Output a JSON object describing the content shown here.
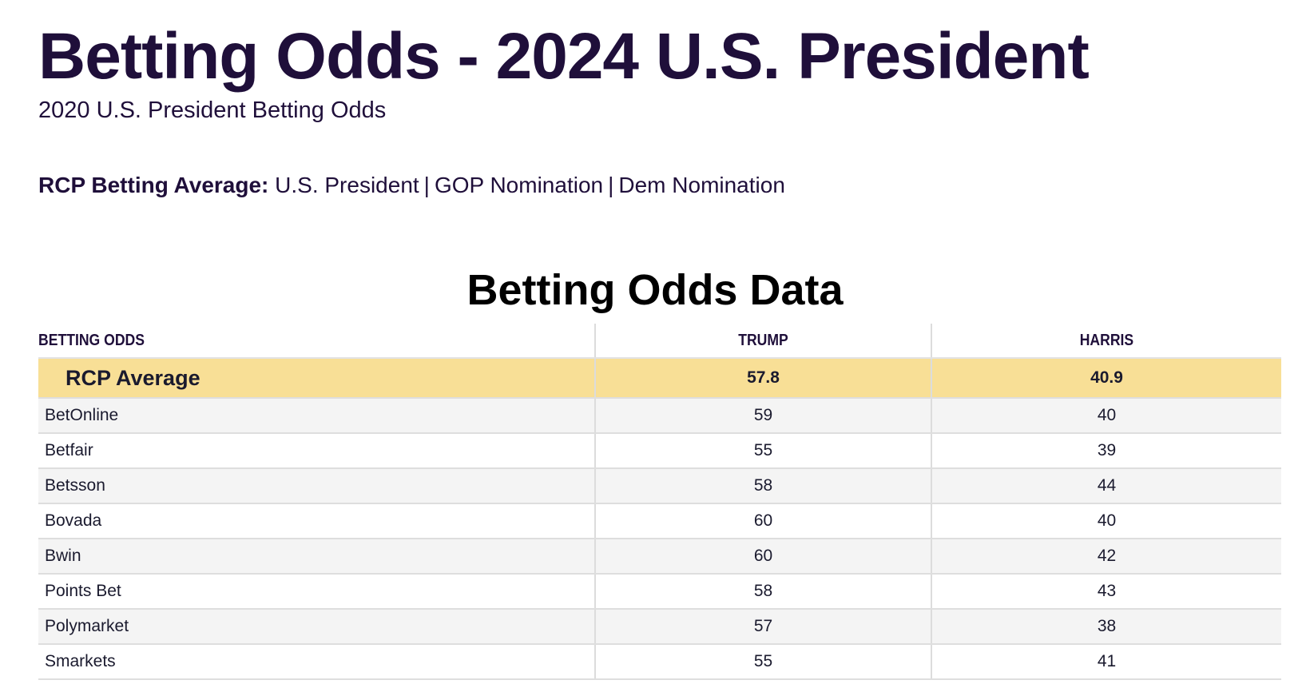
{
  "header": {
    "title": "Betting Odds - 2024 U.S. President",
    "subtitle": "2020 U.S. President Betting Odds"
  },
  "averages_nav": {
    "label": "RCP Betting Average:",
    "links": [
      "U.S. President",
      "GOP Nomination",
      "Dem Nomination"
    ],
    "separator": "|"
  },
  "table": {
    "title": "Betting Odds Data",
    "columns": [
      "BETTING ODDS",
      "TRUMP",
      "HARRIS"
    ],
    "average": {
      "name": "RCP Average",
      "trump": "57.8",
      "harris": "40.9"
    },
    "rows": [
      {
        "name": "BetOnline",
        "trump": "59",
        "harris": "40"
      },
      {
        "name": "Betfair",
        "trump": "55",
        "harris": "39"
      },
      {
        "name": "Betsson",
        "trump": "58",
        "harris": "44"
      },
      {
        "name": "Bovada",
        "trump": "60",
        "harris": "40"
      },
      {
        "name": "Bwin",
        "trump": "60",
        "harris": "42"
      },
      {
        "name": "Points Bet",
        "trump": "58",
        "harris": "43"
      },
      {
        "name": "Polymarket",
        "trump": "57",
        "harris": "38"
      },
      {
        "name": "Smarkets",
        "trump": "55",
        "harris": "41"
      }
    ]
  },
  "colors": {
    "heading": "#1f0f3a",
    "average_row": "#f8df96",
    "striped_row": "#f4f4f4"
  }
}
